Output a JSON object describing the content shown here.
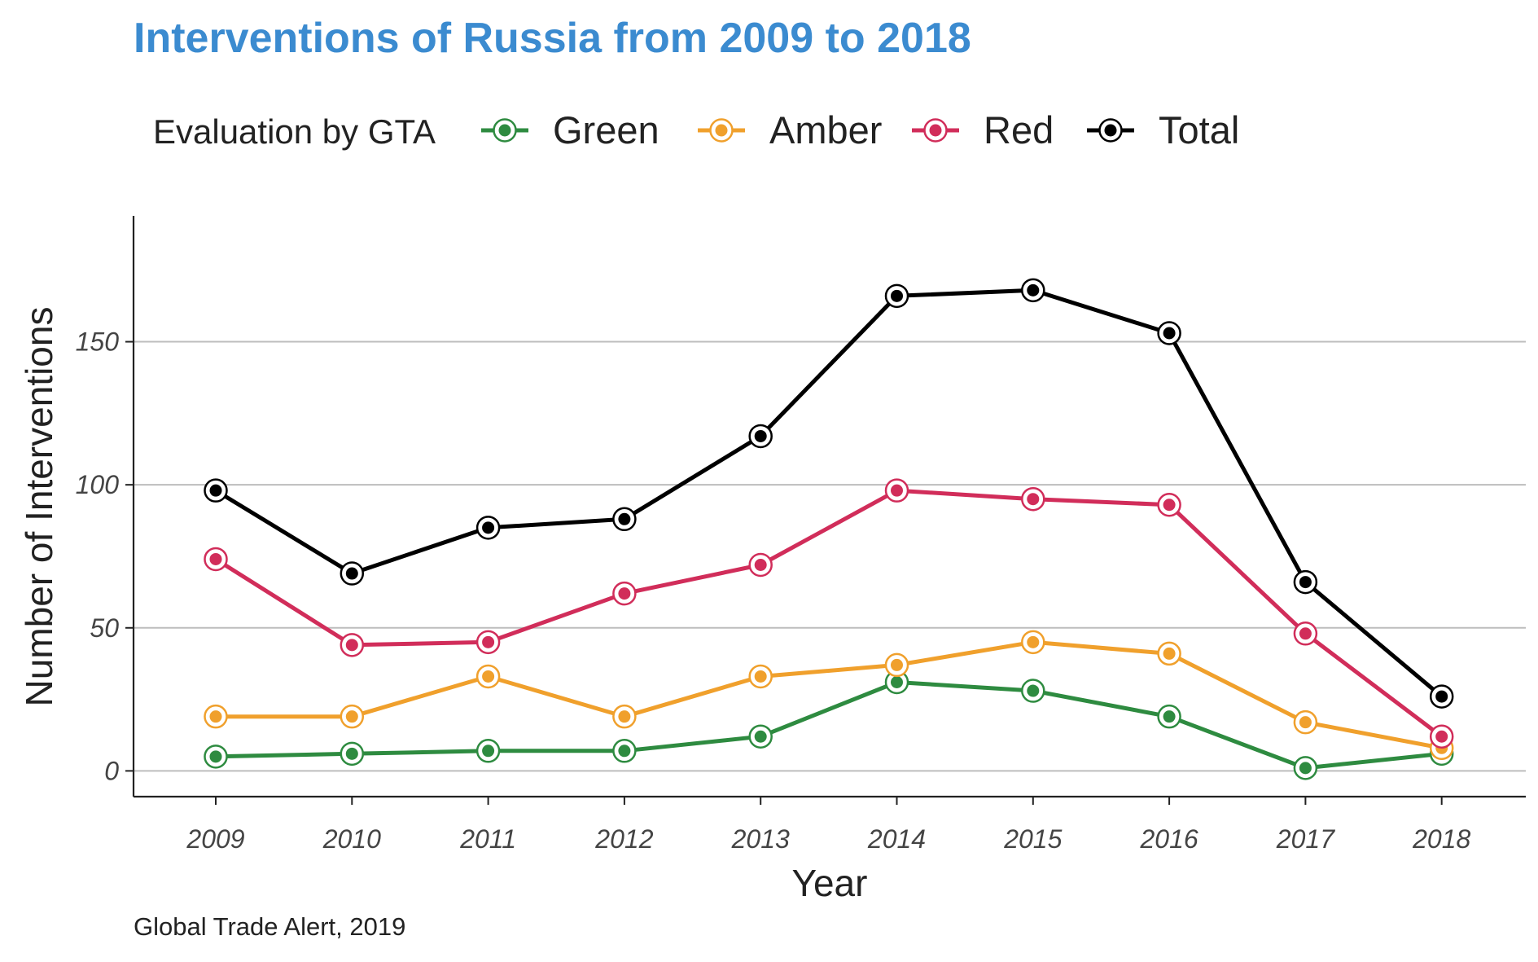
{
  "chart_data": {
    "type": "line",
    "title": "Interventions of Russia from 2009 to 2018",
    "title_color": "#3b8bd0",
    "xlabel": "Year",
    "ylabel": "Number of Interventions",
    "caption": "Global Trade Alert, 2019",
    "legend_title": "Evaluation by GTA",
    "legend_position": "top",
    "grid": "horizontal major",
    "x": [
      "2009",
      "2010",
      "2011",
      "2012",
      "2013",
      "2014",
      "2015",
      "2016",
      "2017",
      "2018"
    ],
    "ylim": [
      -9,
      194
    ],
    "yticks": [
      0,
      50,
      100,
      150
    ],
    "series": [
      {
        "name": "Green",
        "color": "#2e8b40",
        "values": [
          5,
          6,
          7,
          7,
          12,
          31,
          28,
          19,
          1,
          6
        ]
      },
      {
        "name": "Amber",
        "color": "#f0a02c",
        "values": [
          19,
          19,
          33,
          19,
          33,
          37,
          45,
          41,
          17,
          8
        ]
      },
      {
        "name": "Red",
        "color": "#d12d5a",
        "values": [
          74,
          44,
          45,
          62,
          72,
          98,
          95,
          93,
          48,
          12
        ]
      },
      {
        "name": "Total",
        "color": "#000000",
        "values": [
          98,
          69,
          85,
          88,
          117,
          166,
          168,
          153,
          66,
          26
        ]
      }
    ]
  }
}
